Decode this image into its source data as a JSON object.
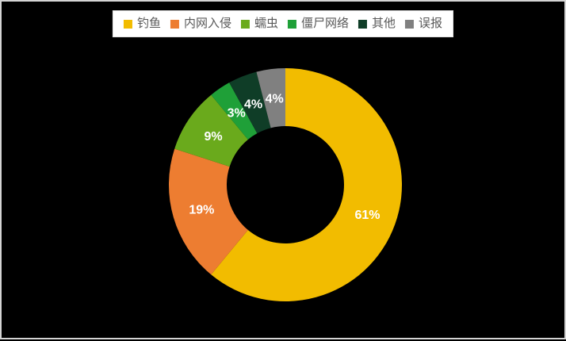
{
  "chart_data": {
    "type": "pie",
    "subtype": "donut",
    "title": "",
    "categories": [
      "钓鱼",
      "内网入侵",
      "蠕虫",
      "僵尸网络",
      "其他",
      "误报"
    ],
    "values": [
      61,
      19,
      9,
      3,
      4,
      4
    ],
    "labels": [
      "61%",
      "19%",
      "9%",
      "3%",
      "4%",
      "4%"
    ],
    "colors": [
      "#F2BC00",
      "#ED7D31",
      "#6AAA1C",
      "#1FA038",
      "#0F3D27",
      "#808080"
    ],
    "unit": "%",
    "start_angle_deg": 0,
    "direction": "clockwise",
    "legend_position": "top",
    "legend_background": "#FFFFFF",
    "legend_text_color": "#595959",
    "data_label_color": "#FFFFFF",
    "background_color": "#000000",
    "frame_border_color": "#D4D4D4"
  }
}
